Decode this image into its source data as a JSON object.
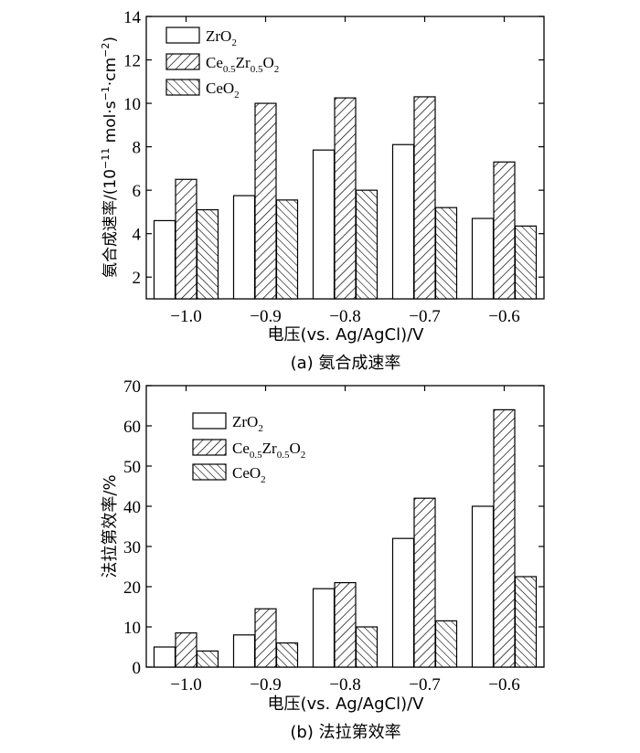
{
  "chart_data": [
    {
      "type": "bar",
      "title": "(a) 氨合成速率",
      "xlabel": "电压(vs. Ag/AgCl)/V",
      "ylabel": "氨合成速率/(10⁻¹¹ mol·s⁻¹·cm⁻²)",
      "ylabel_main": "氨合成速率/(10",
      "ylabel_exp": "−11",
      "ylabel_unit": " mol·s",
      "ylabel_exp2": "−1",
      "ylabel_unit2": "·cm",
      "ylabel_exp3": "−2",
      "ylabel_close": ")",
      "categories": [
        "−1.0",
        "−0.9",
        "−0.8",
        "−0.7",
        "−0.6"
      ],
      "ylim": [
        1,
        14
      ],
      "yticks": [
        "2",
        "4",
        "6",
        "8",
        "10",
        "12",
        "14"
      ],
      "series": [
        {
          "name": "ZrO2",
          "values": [
            4.6,
            5.75,
            7.85,
            8.1,
            4.7
          ]
        },
        {
          "name": "Ce0.5Zr0.5O2",
          "values": [
            6.5,
            10.0,
            10.25,
            10.3,
            7.3
          ]
        },
        {
          "name": "CeO2",
          "values": [
            5.1,
            5.55,
            6.0,
            5.2,
            4.35
          ]
        }
      ]
    },
    {
      "type": "bar",
      "title": "(b) 法拉第效率",
      "xlabel": "电压(vs. Ag/AgCl)/V",
      "ylabel": "法拉第效率/%",
      "categories": [
        "−1.0",
        "−0.9",
        "−0.8",
        "−0.7",
        "−0.6"
      ],
      "ylim": [
        0,
        70
      ],
      "yticks": [
        "0",
        "10",
        "20",
        "30",
        "40",
        "50",
        "60",
        "70"
      ],
      "series": [
        {
          "name": "ZrO2",
          "values": [
            5.0,
            8.0,
            19.5,
            32.0,
            40.0
          ]
        },
        {
          "name": "Ce0.5Zr0.5O2",
          "values": [
            8.5,
            14.5,
            21.0,
            42.0,
            64.0
          ]
        },
        {
          "name": "CeO2",
          "values": [
            4.0,
            6.0,
            10.0,
            11.5,
            22.5
          ]
        }
      ]
    }
  ],
  "legend": {
    "zro2": {
      "base": "ZrO",
      "sub": "2"
    },
    "cezr": {
      "ce": "Ce",
      "sub1": "0.5",
      "zr": "Zr",
      "sub2": "0.5",
      "o": "O",
      "sub3": "2"
    },
    "ceo2": {
      "base": "CeO",
      "sub": "2"
    }
  }
}
